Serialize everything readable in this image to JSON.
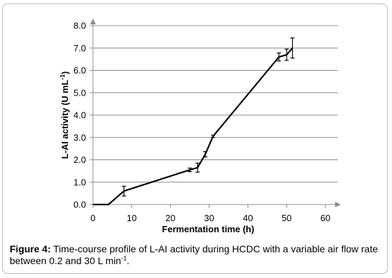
{
  "chart_data": {
    "type": "line",
    "xlabel": "Fermentation time (h)",
    "ylabel_main": "L-AI activity (U mL",
    "ylabel_sup": "-1",
    "ylabel_close": ")",
    "xlim": [
      0,
      60
    ],
    "ylim": [
      0,
      8
    ],
    "x_ticks": [
      "0",
      "10",
      "20",
      "30",
      "40",
      "50",
      "60"
    ],
    "y_ticks": [
      "0.0",
      "1.0",
      "2.0",
      "3.0",
      "4.0",
      "5.0",
      "6.0",
      "7.0",
      "8.0"
    ],
    "grid": "horizontal",
    "series": [
      {
        "x": [
          0,
          4,
          8,
          25,
          27,
          29,
          31,
          48,
          50,
          51.5
        ],
        "y": [
          0,
          0,
          0.6,
          1.55,
          1.65,
          2.25,
          3.05,
          6.6,
          6.7,
          7.0
        ],
        "err": [
          0,
          0,
          0.22,
          0.08,
          0.2,
          0.12,
          0.05,
          0.18,
          0.25,
          0.45
        ]
      }
    ]
  },
  "caption": {
    "label": "Figure 4:",
    "text_part1": " Time-course profile of L-AI activity during HCDC with a variable air flow rate between 0.2 and 30 L min",
    "text_sup": "-1",
    "text_end": "."
  }
}
